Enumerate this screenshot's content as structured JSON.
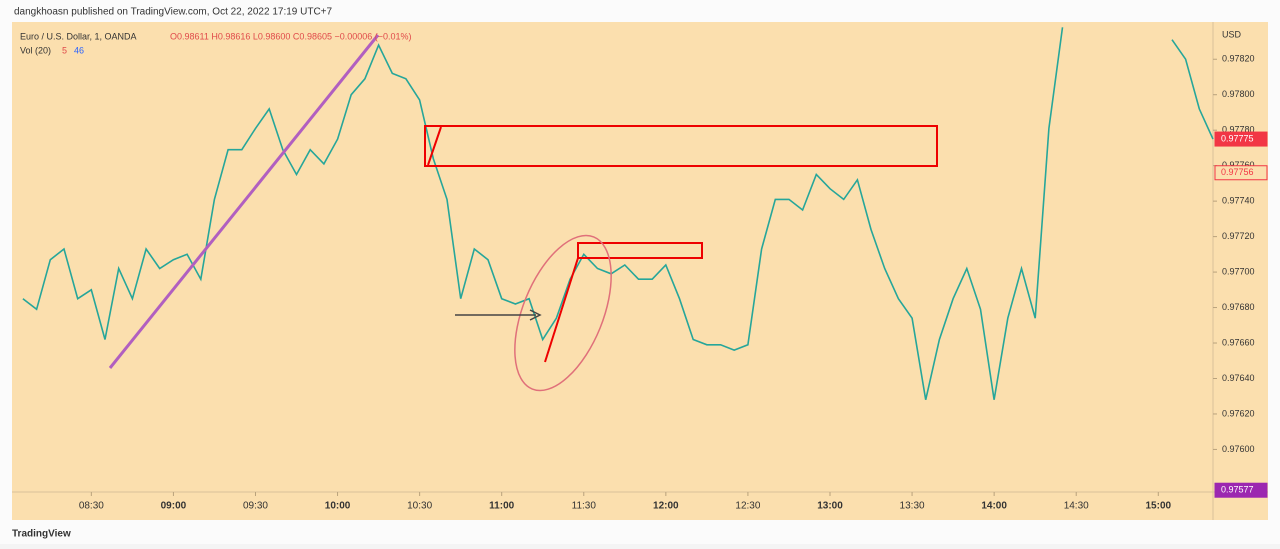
{
  "header": {
    "publisher": "dangkhoasn published on TradingView.com, Oct 22, 2022 17:19 UTC+7",
    "brand": "TradingView"
  },
  "chart_data": {
    "type": "line",
    "title": "Euro / U.S. Dollar, 1, OANDA",
    "ohlc_text": "O0.98611  H0.98616  L0.98600  C0.98605  −0.00006 (−0.01%)",
    "volume_label": "Vol (20)",
    "volume_values": [
      "5",
      "46"
    ],
    "axis_unit": "USD",
    "color": "#26a69a",
    "x": [
      "08:05",
      "08:10",
      "08:15",
      "08:20",
      "08:25",
      "08:30",
      "08:35",
      "08:40",
      "08:45",
      "08:50",
      "08:55",
      "09:00",
      "09:05",
      "09:10",
      "09:15",
      "09:20",
      "09:25",
      "09:30",
      "09:35",
      "09:40",
      "09:45",
      "09:50",
      "09:55",
      "10:00",
      "10:05",
      "10:10",
      "10:15",
      "10:20",
      "10:25",
      "10:30",
      "10:35",
      "10:40",
      "10:45",
      "10:50",
      "10:55",
      "11:00",
      "11:05",
      "11:10",
      "11:15",
      "11:20",
      "11:25",
      "11:30",
      "11:35",
      "11:40",
      "11:45",
      "11:50",
      "11:55",
      "12:00",
      "12:05",
      "12:10",
      "12:15",
      "12:20",
      "12:25",
      "12:30",
      "12:35",
      "12:40",
      "12:45",
      "12:50",
      "12:55",
      "13:00",
      "13:05",
      "13:10",
      "13:15",
      "13:20",
      "13:25",
      "13:30",
      "13:35",
      "13:40",
      "13:45",
      "13:50",
      "13:55",
      "14:00",
      "14:05",
      "14:10",
      "14:15",
      "14:20",
      "14:25",
      "14:30",
      "14:35",
      "14:40",
      "14:45",
      "14:50",
      "14:55",
      "15:00",
      "15:05",
      "15:10",
      "15:15",
      "15:20"
    ],
    "values": [
      0.97685,
      0.97679,
      0.97707,
      0.97713,
      0.97685,
      0.9769,
      0.97662,
      0.97702,
      0.97685,
      0.97713,
      0.97702,
      0.97707,
      0.9771,
      0.97696,
      0.97741,
      0.97769,
      0.97769,
      0.97781,
      0.97792,
      0.97769,
      0.97755,
      0.97769,
      0.97761,
      0.97775,
      0.978,
      0.97809,
      0.97828,
      0.97812,
      0.97809,
      0.97797,
      0.97764,
      0.97741,
      0.97685,
      0.97713,
      0.97707,
      0.97685,
      0.97682,
      0.97685,
      0.97662,
      0.97674,
      0.97696,
      0.9771,
      0.97702,
      0.97699,
      0.97704,
      0.97696,
      0.97696,
      0.97704,
      0.97685,
      0.97662,
      0.97659,
      0.97659,
      0.97656,
      0.97659,
      0.97713,
      0.97741,
      0.97741,
      0.97735,
      0.97755,
      0.97747,
      0.97741,
      0.97752,
      0.97724,
      0.97702,
      0.97685,
      0.97674,
      0.97628,
      0.97662,
      0.97685,
      0.97702,
      0.97679,
      0.97628,
      0.97674,
      0.97702,
      0.97674,
      0.97781,
      0.97838,
      null,
      null,
      null,
      null,
      null,
      null,
      null,
      0.97831,
      0.9782,
      0.97792,
      0.97775
    ],
    "xlim": [
      "08:01",
      "15:20"
    ],
    "xticks": [
      "08:30",
      "09:00",
      "09:30",
      "10:00",
      "10:30",
      "11:00",
      "11:30",
      "12:00",
      "12:30",
      "13:00",
      "13:30",
      "14:00",
      "14:30",
      "15:00"
    ],
    "ylim": [
      0.97576,
      0.97841
    ],
    "yticks": [
      {
        "value": 0.9782,
        "label": "0.97820"
      },
      {
        "value": 0.978,
        "label": "0.97800"
      },
      {
        "value": 0.9778,
        "label": "0.97780"
      },
      {
        "value": 0.9776,
        "label": "0.97760"
      },
      {
        "value": 0.9774,
        "label": "0.97740"
      },
      {
        "value": 0.9772,
        "label": "0.97720"
      },
      {
        "value": 0.977,
        "label": "0.97700"
      },
      {
        "value": 0.9768,
        "label": "0.97680"
      },
      {
        "value": 0.9766,
        "label": "0.97660"
      },
      {
        "value": 0.9764,
        "label": "0.97640"
      },
      {
        "value": 0.9762,
        "label": "0.97620"
      },
      {
        "value": 0.976,
        "label": "0.97600"
      }
    ],
    "price_tags": [
      {
        "value": 0.97775,
        "label": "0.97775",
        "color": "#f23645",
        "style": "solid"
      },
      {
        "value": 0.97756,
        "label": "0.97756",
        "color": "#f23645",
        "style": "outline"
      },
      {
        "value": 0.97577,
        "label": "0.97577",
        "color": "#9c27b0",
        "style": "solid"
      }
    ],
    "grid": false
  }
}
